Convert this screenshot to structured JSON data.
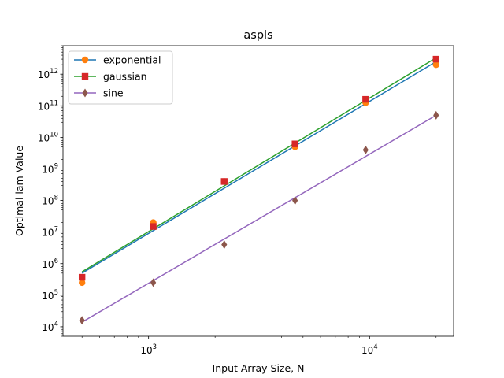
{
  "chart_data": {
    "type": "scatter",
    "title": "aspls",
    "xlabel": "Input Array Size, N",
    "ylabel": "Optimal lam Value",
    "xscale": "log",
    "yscale": "log",
    "xlim": [
      410,
      24000
    ],
    "ylim": [
      5000,
      8000000000000.0
    ],
    "x_major_ticks": [
      {
        "value": 1000,
        "base": "10",
        "exp": "3"
      },
      {
        "value": 10000,
        "base": "10",
        "exp": "4"
      }
    ],
    "y_major_ticks": [
      {
        "value": 10000.0,
        "base": "10",
        "exp": "4"
      },
      {
        "value": 100000.0,
        "base": "10",
        "exp": "5"
      },
      {
        "value": 1000000.0,
        "base": "10",
        "exp": "6"
      },
      {
        "value": 10000000.0,
        "base": "10",
        "exp": "7"
      },
      {
        "value": 100000000.0,
        "base": "10",
        "exp": "8"
      },
      {
        "value": 1000000000.0,
        "base": "10",
        "exp": "9"
      },
      {
        "value": 10000000000.0,
        "base": "10",
        "exp": "10"
      },
      {
        "value": 100000000000.0,
        "base": "10",
        "exp": "11"
      },
      {
        "value": 1000000000000.0,
        "base": "10",
        "exp": "12"
      }
    ],
    "grid": false,
    "legend_position": "upper-left",
    "x": [
      500,
      1050,
      2200,
      4600,
      9600,
      20000
    ],
    "series": [
      {
        "name": "exponential",
        "line_color": "#1f77b4",
        "marker_color": "#ff7f0e",
        "marker": "circle",
        "points": [
          250000,
          20000000,
          400000000,
          5000000000,
          125000000000,
          2000000000000
        ],
        "fit": [
          [
            500,
            500000
          ],
          [
            20000,
            2500000000000
          ]
        ]
      },
      {
        "name": "gaussian",
        "line_color": "#2ca02c",
        "marker_color": "#d62728",
        "marker": "square",
        "points": [
          370000,
          15000000,
          400000000,
          6200000000,
          160000000000,
          3000000000000
        ],
        "fit": [
          [
            500,
            550000
          ],
          [
            20000,
            3300000000000
          ]
        ]
      },
      {
        "name": "sine",
        "line_color": "#9467bd",
        "marker_color": "#8c564b",
        "marker": "diamond",
        "points": [
          16000,
          250000,
          4000000,
          100000000,
          4000000000,
          50000000000
        ],
        "fit": [
          [
            500,
            14000
          ],
          [
            20000,
            50000000000
          ]
        ]
      }
    ]
  }
}
